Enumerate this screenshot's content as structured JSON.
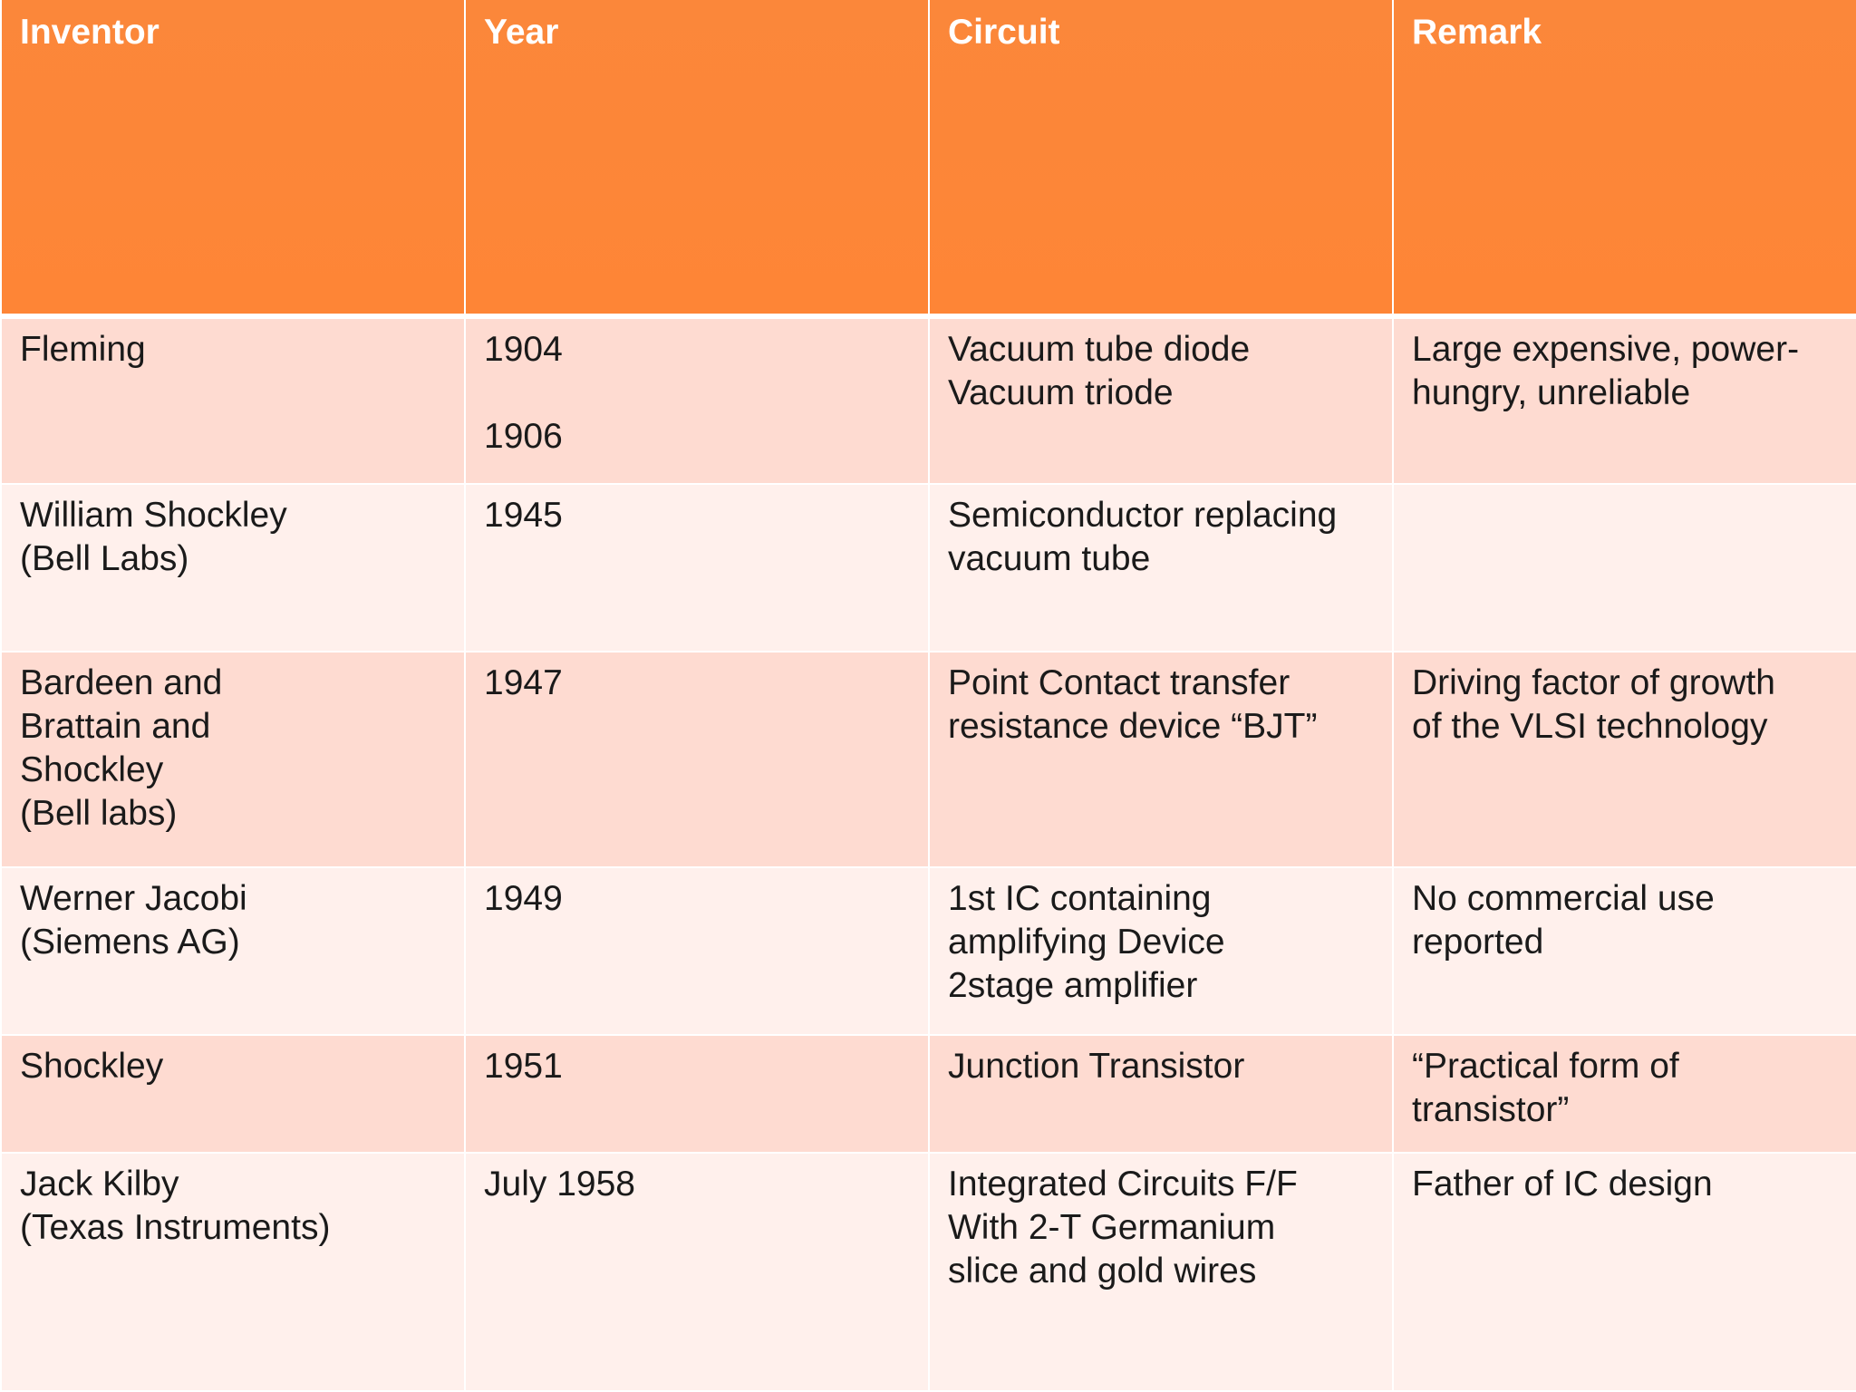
{
  "table": {
    "headers": [
      "Inventor",
      "Year",
      "Circuit",
      "Remark"
    ],
    "rows": [
      {
        "inventor": "Fleming",
        "year": "1904\n\n1906",
        "circuit": "Vacuum tube diode\nVacuum triode",
        "remark": "Large expensive, power-\nhungry, unreliable"
      },
      {
        "inventor": "William Shockley\n(Bell Labs)",
        "year": "1945",
        "circuit": "Semiconductor replacing\nvacuum tube",
        "remark": ""
      },
      {
        "inventor": "Bardeen and\nBrattain and\nShockley\n(Bell labs)",
        "year": "1947",
        "circuit": "Point Contact transfer\nresistance device “BJT”",
        "remark": "Driving factor of growth\nof the VLSI technology"
      },
      {
        "inventor": "Werner Jacobi\n(Siemens AG)",
        "year": "1949",
        "circuit": "1st IC containing\namplifying Device\n2stage amplifier",
        "remark": "No commercial use\nreported"
      },
      {
        "inventor": "Shockley",
        "year": "1951",
        "circuit": "Junction Transistor",
        "remark": "“Practical form of\ntransistor”"
      },
      {
        "inventor": "Jack Kilby\n(Texas Instruments)",
        "year": "July 1958",
        "circuit": "Integrated Circuits F/F\nWith 2-T Germanium\nslice and gold wires",
        "remark": "Father of IC design"
      }
    ]
  },
  "colors": {
    "header": "#fe8536",
    "row_odd": "#fedbd1",
    "row_even": "#fff0ec"
  }
}
